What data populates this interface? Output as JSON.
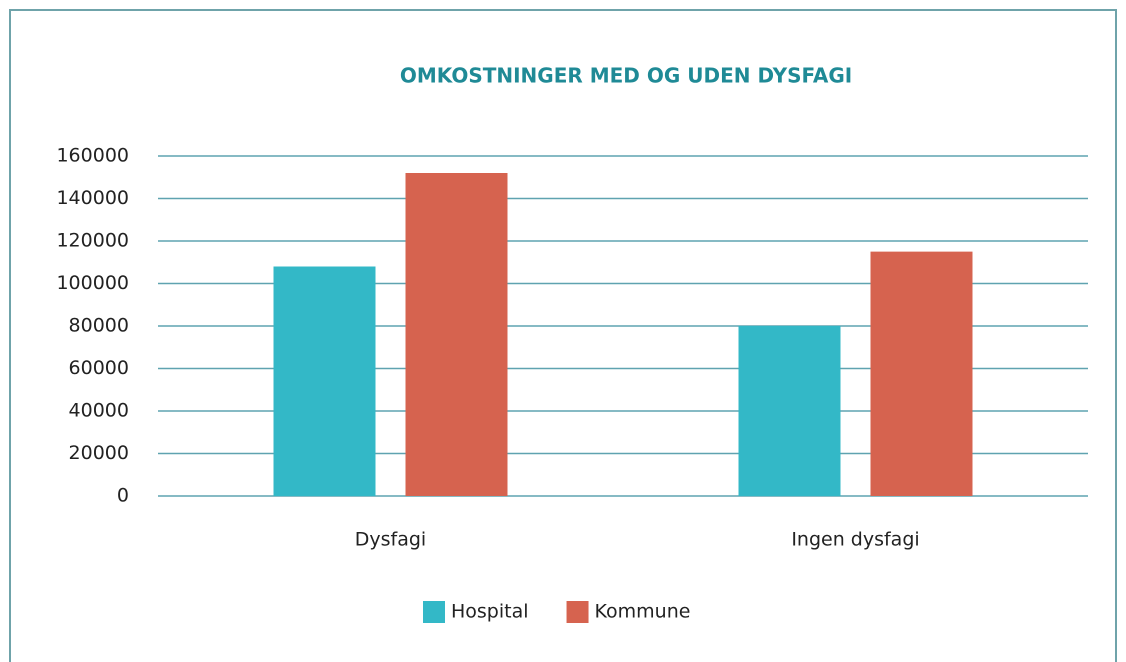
{
  "chart_data": {
    "type": "bar",
    "title": "OMKOSTNINGER MED OG UDEN DYSFAGI",
    "categories": [
      "Dysfagi",
      "Ingen dysfagi"
    ],
    "series": [
      {
        "name": "Hospital",
        "color": "#33b8c7",
        "values": [
          108000,
          80000
        ]
      },
      {
        "name": "Kommune",
        "color": "#d6634f",
        "values": [
          152000,
          115000
        ]
      }
    ],
    "ylim": [
      0,
      160000
    ],
    "yticks": [
      0,
      20000,
      40000,
      60000,
      80000,
      100000,
      120000,
      140000,
      160000
    ],
    "grid": true,
    "legend": "bottom"
  }
}
